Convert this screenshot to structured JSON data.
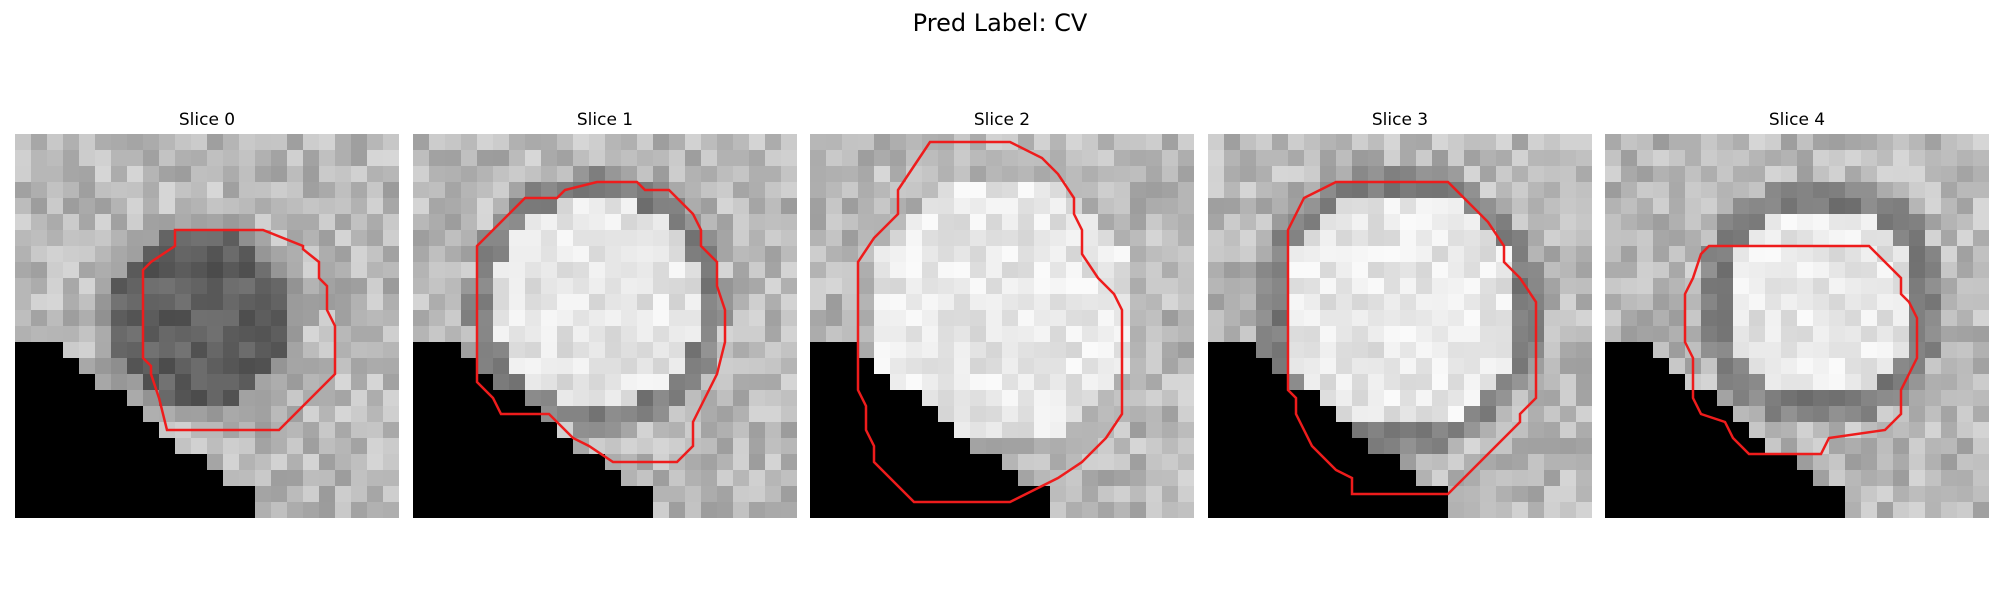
{
  "figure": {
    "suptitle": "Pred Label: CV",
    "contour_color": "#ee1c1c"
  },
  "slices": [
    {
      "title": "Slice 0"
    },
    {
      "title": "Slice 1"
    },
    {
      "title": "Slice 2"
    },
    {
      "title": "Slice 3"
    },
    {
      "title": "Slice 4"
    }
  ]
}
